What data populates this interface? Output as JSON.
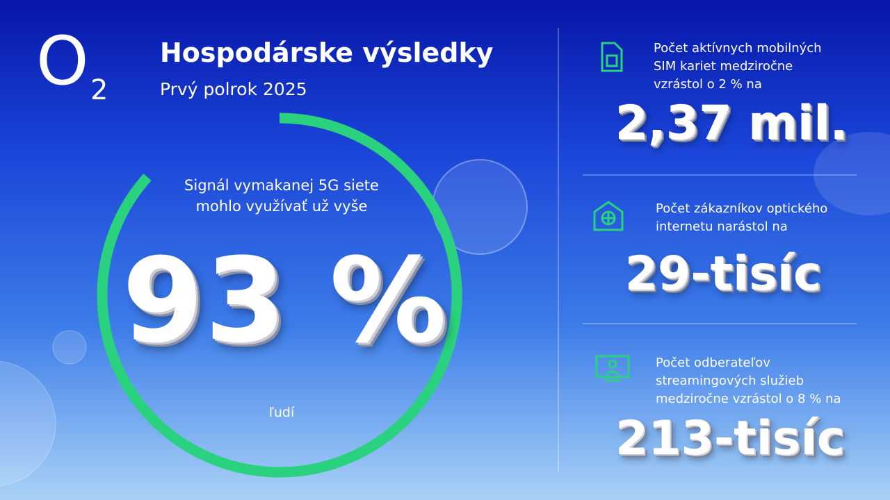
{
  "header": {
    "logo_letter": "O",
    "logo_digit": "2",
    "title": "Hospodárske výsledky",
    "subtitle": "Prvý polrok 2025"
  },
  "main": {
    "lines": [
      "Signál vymakanej 5G siete",
      "mohlo využívať už vyše"
    ],
    "value": "93 %",
    "unit": "ľudí"
  },
  "stats": [
    {
      "lines": [
        "Počet aktívnych mobilných",
        "SIM kariet medziročne",
        "vzrástol o 2 % na"
      ],
      "value": "2,37 mil."
    },
    {
      "lines": [
        "Počet zákazníkov optického",
        "internetu narástol na"
      ],
      "value": "29-tisíc"
    },
    {
      "lines": [
        "Počet odberateľov",
        "streamingových služieb",
        "medziročne vzrástol o 8 % na"
      ],
      "value": "213-tisíc"
    }
  ]
}
